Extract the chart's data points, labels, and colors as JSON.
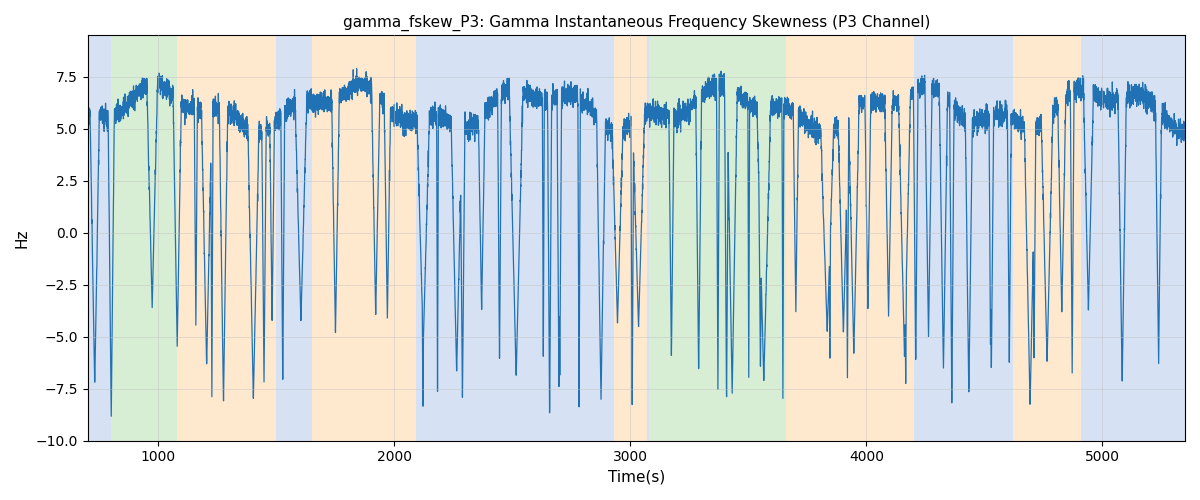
{
  "title": "gamma_fskew_P3: Gamma Instantaneous Frequency Skewness (P3 Channel)",
  "xlabel": "Time(s)",
  "ylabel": "Hz",
  "ylim": [
    -10.0,
    9.5
  ],
  "xlim": [
    700,
    5350
  ],
  "line_color": "#2171b5",
  "line_width": 0.9,
  "grid_color": "#c0c0c0",
  "grid_alpha": 0.6,
  "bands": [
    {
      "xmin": 700,
      "xmax": 800,
      "color": "#aec6e8",
      "alpha": 0.5
    },
    {
      "xmin": 800,
      "xmax": 1080,
      "color": "#a8d8a0",
      "alpha": 0.45
    },
    {
      "xmin": 1080,
      "xmax": 1500,
      "color": "#ffd59f",
      "alpha": 0.5
    },
    {
      "xmin": 1500,
      "xmax": 1650,
      "color": "#aec6e8",
      "alpha": 0.5
    },
    {
      "xmin": 1650,
      "xmax": 2090,
      "color": "#ffd59f",
      "alpha": 0.5
    },
    {
      "xmin": 2090,
      "xmax": 2930,
      "color": "#aec6e8",
      "alpha": 0.5
    },
    {
      "xmin": 2930,
      "xmax": 3070,
      "color": "#ffd59f",
      "alpha": 0.5
    },
    {
      "xmin": 3070,
      "xmax": 3080,
      "color": "#aec6e8",
      "alpha": 0.5
    },
    {
      "xmin": 3080,
      "xmax": 3660,
      "color": "#a8d8a0",
      "alpha": 0.45
    },
    {
      "xmin": 3660,
      "xmax": 4200,
      "color": "#ffd59f",
      "alpha": 0.5
    },
    {
      "xmin": 4200,
      "xmax": 4620,
      "color": "#aec6e8",
      "alpha": 0.5
    },
    {
      "xmin": 4620,
      "xmax": 4910,
      "color": "#ffd59f",
      "alpha": 0.5
    },
    {
      "xmin": 4910,
      "xmax": 5350,
      "color": "#aec6e8",
      "alpha": 0.5
    }
  ],
  "yticks": [
    -10.0,
    -7.5,
    -5.0,
    -2.5,
    0.0,
    2.5,
    5.0,
    7.5
  ],
  "xticks": [
    1000,
    2000,
    3000,
    4000,
    5000
  ],
  "figsize": [
    12.0,
    5.0
  ],
  "dpi": 100
}
